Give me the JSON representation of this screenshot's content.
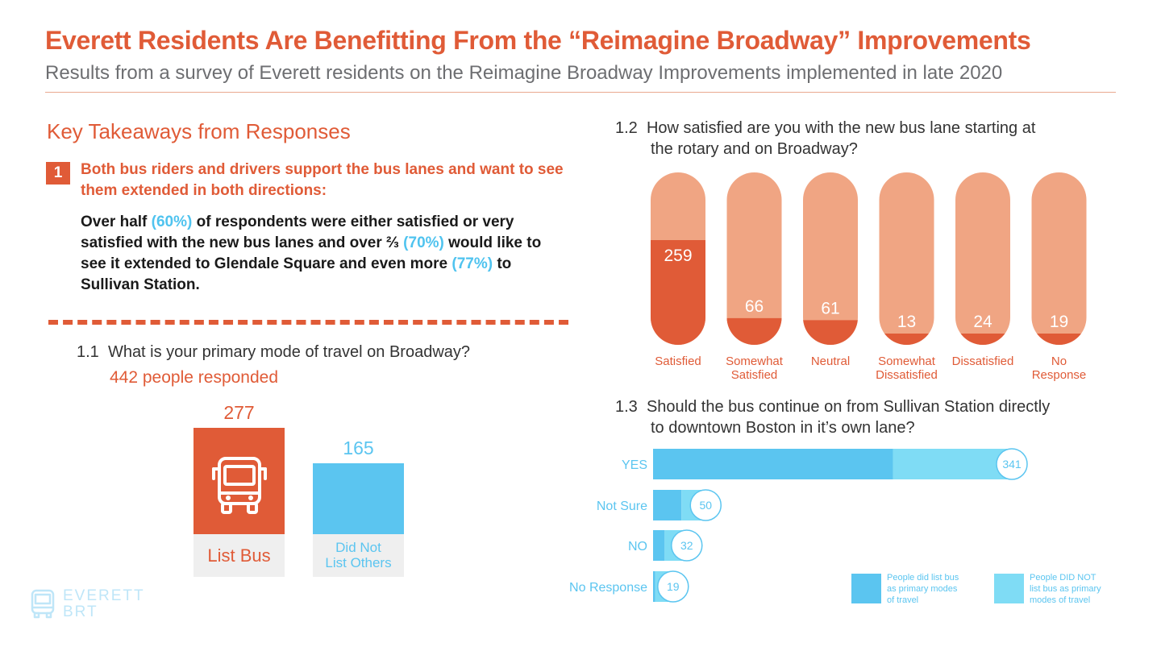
{
  "header": {
    "title": "Everett Residents Are Benefitting From the “Reimagine Broadway” Improvements",
    "subtitle": "Results from a survey of Everett residents on the Reimagine Broadway Improvements implemented in late 2020"
  },
  "takeaways": {
    "heading": "Key Takeaways from Responses",
    "number": "1",
    "point": "Both bus riders and drivers support the bus lanes and want to see them extended in both directions:",
    "detail_parts": {
      "a": "Over half ",
      "b": "(60%)",
      "c": " of respondents were either satisfied or very satisfied with the new bus lanes and over ⅔ ",
      "d": "(70%)",
      "e": " would like to see it extended to Glendale Square and even more ",
      "f": "(77%)",
      "g": " to Sullivan Station."
    }
  },
  "logo": {
    "line1": "EVERETT",
    "line2": "BRT"
  },
  "colors": {
    "accent": "#e05b37",
    "accent_light": "#f0a583",
    "blue": "#5bc5f0",
    "blue_light": "#7fdcf5"
  },
  "chart_data": [
    {
      "id": "q1_1",
      "type": "bar",
      "number": "1.1",
      "title": "What is your primary mode of travel on Broadway?",
      "subtitle": "442 people responded",
      "categories": [
        "List Bus",
        "Did Not List Others"
      ],
      "category_lines": [
        [
          "List Bus"
        ],
        [
          "Did Not",
          "List Others"
        ]
      ],
      "values": [
        277,
        165
      ],
      "icon": "bus-icon"
    },
    {
      "id": "q1_2",
      "type": "bar",
      "number": "1.2",
      "title_lines": [
        "How satisfied are you with the new bus lane starting at",
        "the rotary and on Broadway?"
      ],
      "categories": [
        "Satisfied",
        "Somewhat Satisfied",
        "Neutral",
        "Somewhat Dissatisfied",
        "Dissatisfied",
        "No Response"
      ],
      "category_lines": [
        [
          "Satisfied"
        ],
        [
          "Somewhat",
          "Satisfied"
        ],
        [
          "Neutral"
        ],
        [
          "Somewhat",
          "Dissatisfied"
        ],
        [
          "Dissatisfied"
        ],
        [
          "No",
          "Response"
        ]
      ],
      "values": [
        259,
        66,
        61,
        13,
        24,
        19
      ]
    },
    {
      "id": "q1_3",
      "type": "bar",
      "orientation": "horizontal",
      "stacked": true,
      "number": "1.3",
      "title_lines": [
        "Should the bus continue on from Sullivan Station directly",
        "to downtown Boston in it’s own lane?"
      ],
      "categories": [
        "YES",
        "Not Sure",
        "NO",
        "No Response"
      ],
      "totals": [
        341,
        50,
        32,
        19
      ],
      "series": [
        {
          "name": "People did list bus as primary modes of travel",
          "legend_lines": [
            "People did list bus",
            "as primary modes",
            "of travel"
          ],
          "values": [
            228,
            27,
            11,
            2
          ]
        },
        {
          "name": "People DID NOT list bus as primary modes of travel",
          "legend_lines": [
            "People DID NOT",
            "list bus as primary",
            "modes of travel"
          ],
          "values": [
            113,
            23,
            21,
            17
          ]
        }
      ],
      "legend": "bottom-right"
    }
  ]
}
